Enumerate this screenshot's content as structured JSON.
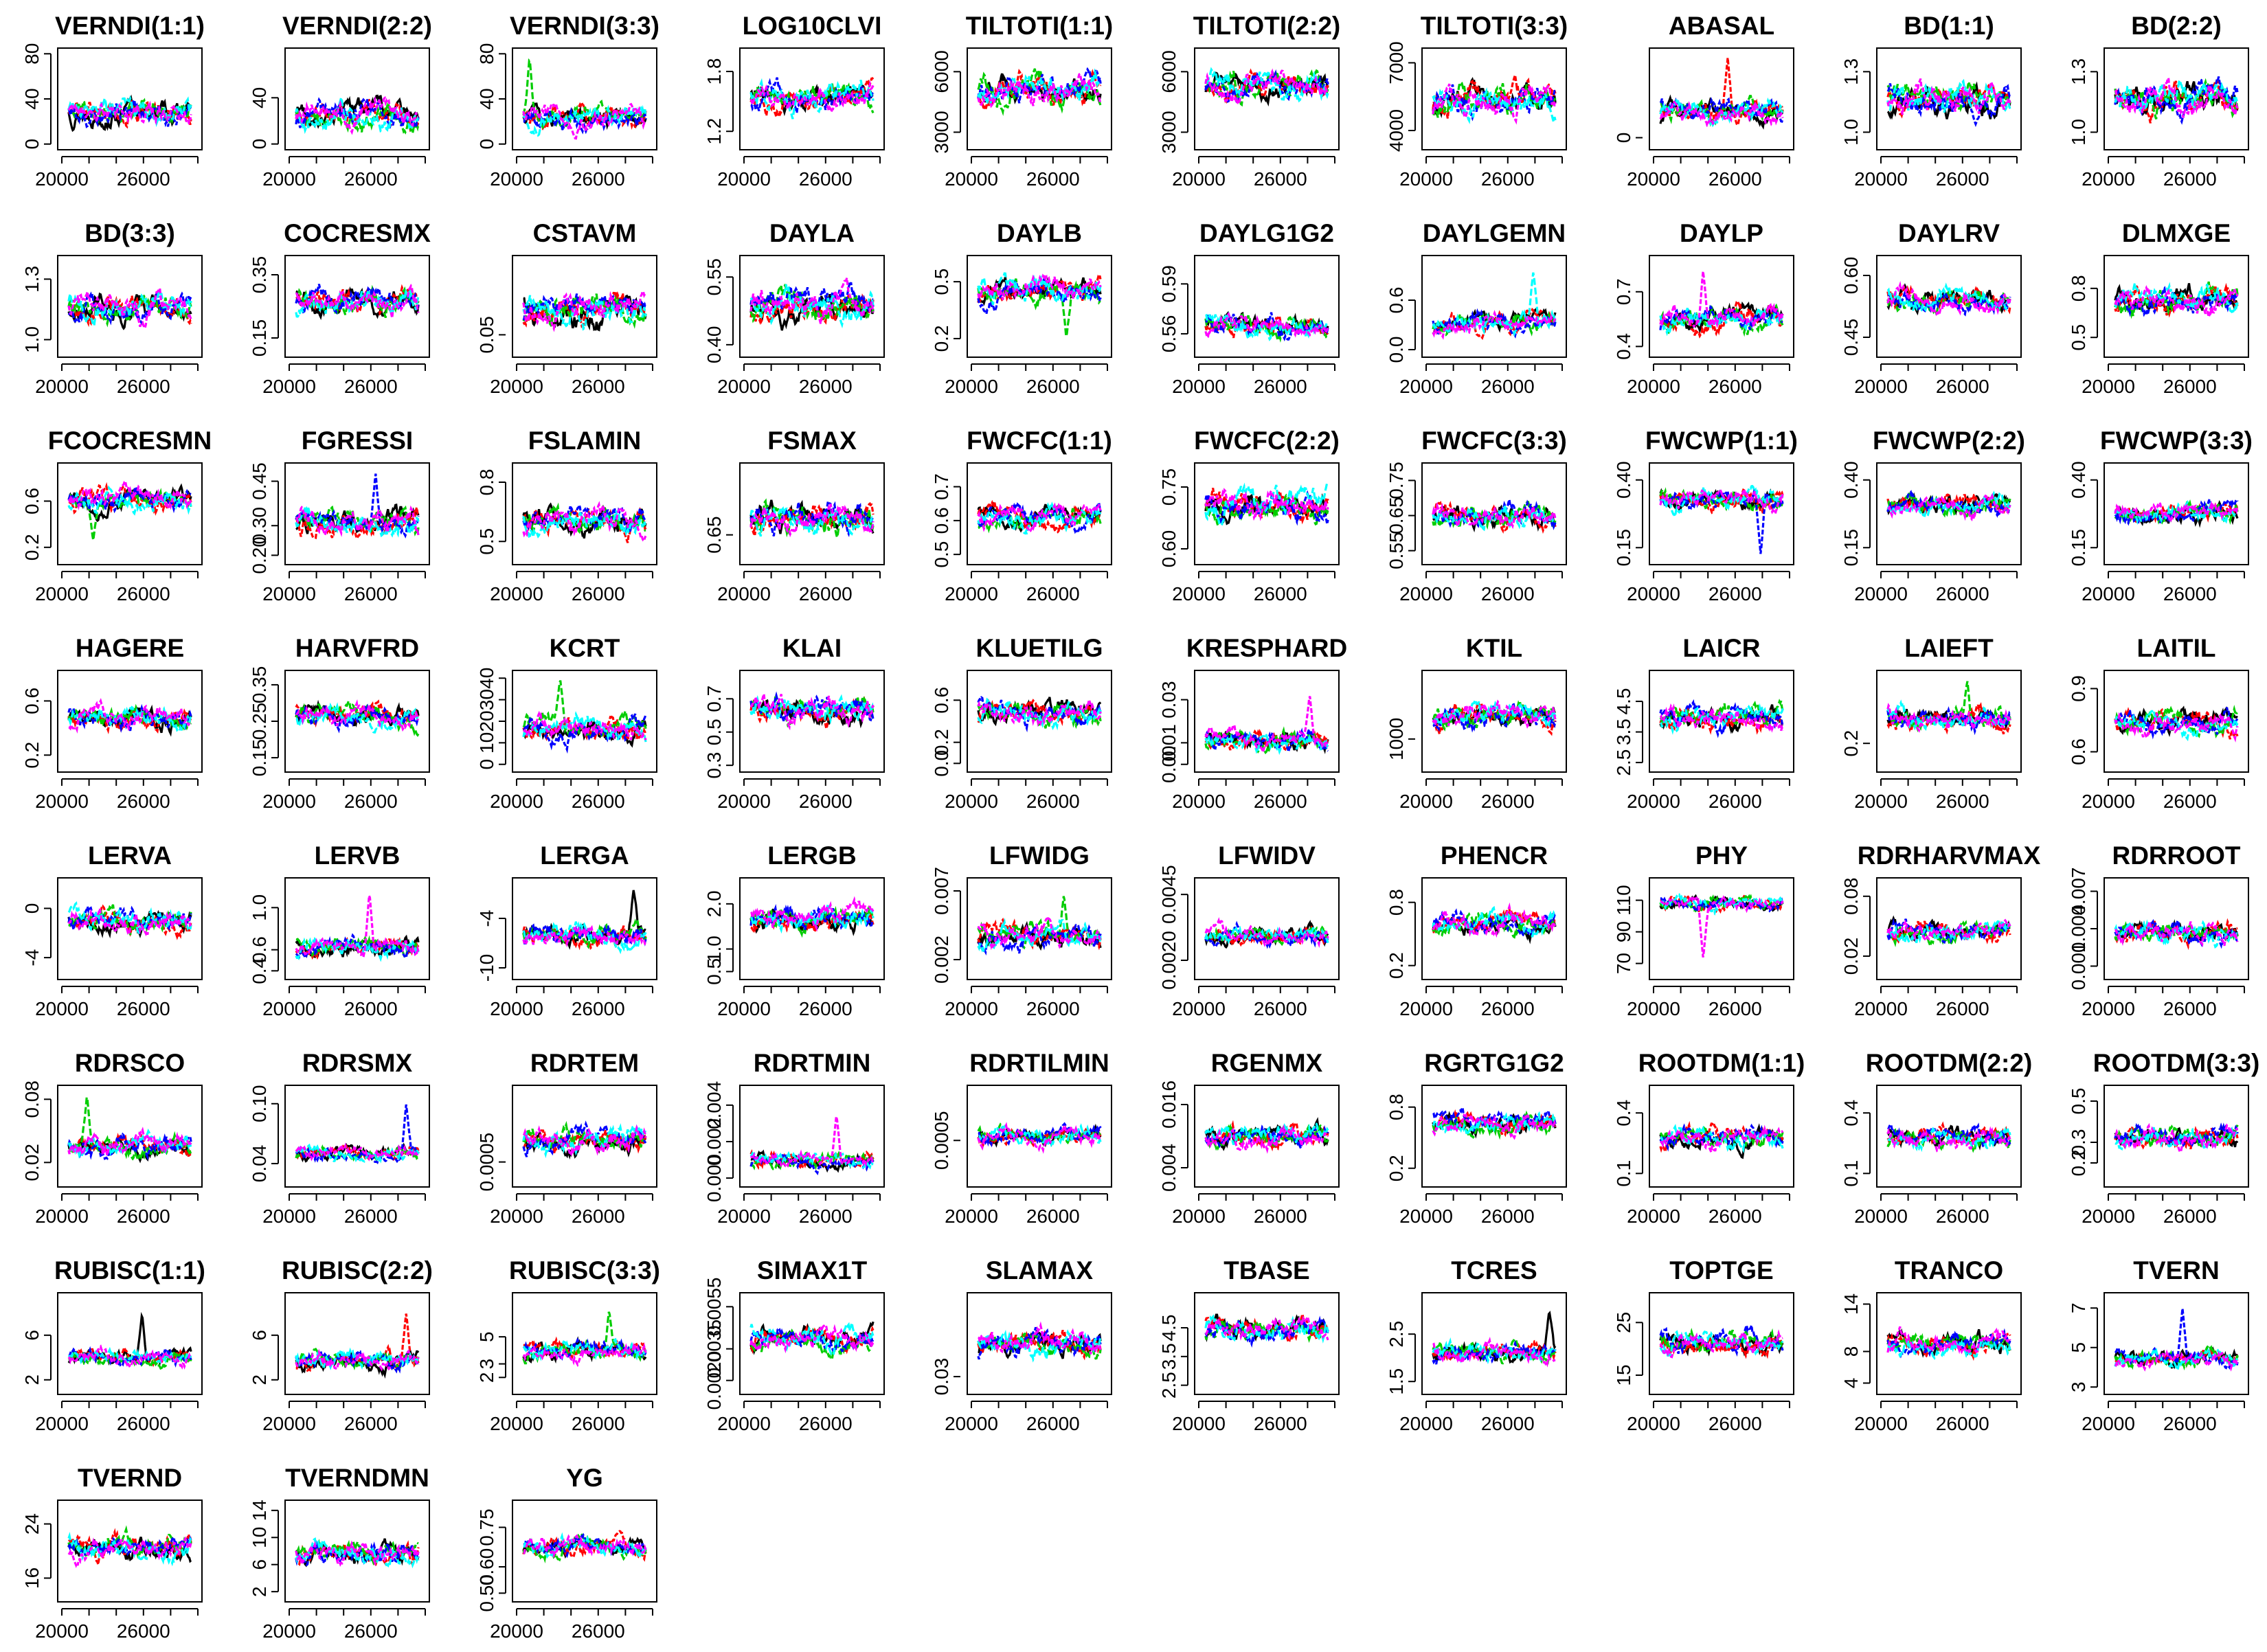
{
  "figure": {
    "ncols": 10,
    "nrows": 8,
    "chain_colors": [
      "#000000",
      "#ff0000",
      "#00cd00",
      "#0000ff",
      "#00ffff",
      "#ff00ff"
    ],
    "x_range": [
      20000,
      30000
    ],
    "x_ticks": [
      20000,
      26000
    ]
  },
  "chart_data": [
    {
      "type": "line",
      "title": "VERNDI(1:1)",
      "yticks": [
        0,
        40,
        80
      ],
      "ylim": [
        -2,
        82
      ],
      "band": [
        12,
        45
      ],
      "spike": [],
      "dip": []
    },
    {
      "type": "line",
      "title": "VERNDI(2:2)",
      "yticks": [
        0,
        40
      ],
      "ylim": [
        -2,
        80
      ],
      "band": [
        8,
        42
      ],
      "spike": [],
      "dip": []
    },
    {
      "type": "line",
      "title": "VERNDI(3:3)",
      "yticks": [
        0,
        40,
        80
      ],
      "ylim": [
        -2,
        82
      ],
      "band": [
        8,
        38
      ],
      "spike": [
        0.05,
        78
      ],
      "dip": []
    },
    {
      "type": "line",
      "title": "LOG10CLVI",
      "yticks": [
        1.2,
        1.8
      ],
      "ylim": [
        1.05,
        2.0
      ],
      "band": [
        1.35,
        1.75
      ],
      "spike": [],
      "dip": []
    },
    {
      "type": "line",
      "title": "TILTOTI(1:1)",
      "yticks": [
        3000,
        6000
      ],
      "ylim": [
        2300,
        7000
      ],
      "band": [
        4000,
        6200
      ],
      "spike": [],
      "dip": []
    },
    {
      "type": "line",
      "title": "TILTOTI(2:2)",
      "yticks": [
        3000,
        6000
      ],
      "ylim": [
        2300,
        7000
      ],
      "band": [
        4300,
        6300
      ],
      "spike": [],
      "dip": []
    },
    {
      "type": "line",
      "title": "TILTOTI(3:3)",
      "yticks": [
        4000,
        7000
      ],
      "ylim": [
        3300,
        7500
      ],
      "band": [
        4400,
        6400
      ],
      "spike": [],
      "dip": []
    },
    {
      "type": "line",
      "title": "ABASAL",
      "yticks": [
        0.0
      ],
      "ylim": [
        -0.0003,
        0.003
      ],
      "band": [
        0.0003,
        0.0015
      ],
      "spike": [
        0.55,
        0.0028
      ],
      "dip": []
    },
    {
      "type": "line",
      "title": "BD(1:1)",
      "yticks": [
        1.0,
        1.3
      ],
      "ylim": [
        0.93,
        1.4
      ],
      "band": [
        1.05,
        1.28
      ],
      "spike": [],
      "dip": []
    },
    {
      "type": "line",
      "title": "BD(2:2)",
      "yticks": [
        1.0,
        1.3
      ],
      "ylim": [
        0.93,
        1.4
      ],
      "band": [
        1.05,
        1.28
      ],
      "spike": [],
      "dip": []
    },
    {
      "type": "line",
      "title": "BD(3:3)",
      "yticks": [
        1.0,
        1.3
      ],
      "ylim": [
        0.93,
        1.4
      ],
      "band": [
        1.05,
        1.25
      ],
      "spike": [],
      "dip": []
    },
    {
      "type": "line",
      "title": "COCRESMX",
      "yticks": [
        0.15,
        0.35
      ],
      "ylim": [
        0.1,
        0.4
      ],
      "band": [
        0.2,
        0.33
      ],
      "spike": [],
      "dip": []
    },
    {
      "type": "line",
      "title": "CSTAVM",
      "yticks": [
        0.05
      ],
      "ylim": [
        0.0,
        0.25
      ],
      "band": [
        0.05,
        0.18
      ],
      "spike": [],
      "dip": []
    },
    {
      "type": "line",
      "title": "DAYLA",
      "yticks": [
        0.4,
        0.55
      ],
      "ylim": [
        0.38,
        0.59
      ],
      "band": [
        0.43,
        0.54
      ],
      "spike": [],
      "dip": []
    },
    {
      "type": "line",
      "title": "DAYLB",
      "yticks": [
        0.2,
        0.5
      ],
      "ylim": [
        0.12,
        0.62
      ],
      "band": [
        0.35,
        0.55
      ],
      "spike": [],
      "dip": [
        0.72,
        0.2
      ]
    },
    {
      "type": "line",
      "title": "DAYLG1G2",
      "yticks": [
        0.56,
        0.59
      ],
      "ylim": [
        0.548,
        0.605
      ],
      "band": [
        0.555,
        0.575
      ],
      "spike": [],
      "dip": []
    },
    {
      "type": "line",
      "title": "DAYLGEMN",
      "yticks": [
        0.0,
        0.6
      ],
      "ylim": [
        -0.05,
        1.1
      ],
      "band": [
        0.15,
        0.5
      ],
      "spike": [
        0.82,
        0.95
      ],
      "dip": []
    },
    {
      "type": "line",
      "title": "DAYLP",
      "yticks": [
        0.4,
        0.7
      ],
      "ylim": [
        0.36,
        0.88
      ],
      "band": [
        0.45,
        0.65
      ],
      "spike": [
        0.35,
        0.82
      ],
      "dip": []
    },
    {
      "type": "line",
      "title": "DAYLRV",
      "yticks": [
        0.45,
        0.6
      ],
      "ylim": [
        0.41,
        0.64
      ],
      "band": [
        0.5,
        0.58
      ],
      "spike": [],
      "dip": []
    },
    {
      "type": "line",
      "title": "DLMXGE",
      "yticks": [
        0.5,
        0.8
      ],
      "ylim": [
        0.4,
        0.98
      ],
      "band": [
        0.6,
        0.85
      ],
      "spike": [],
      "dip": []
    },
    {
      "type": "line",
      "title": "FCOCRESMN",
      "yticks": [
        0.2,
        0.6
      ],
      "ylim": [
        0.08,
        0.9
      ],
      "band": [
        0.45,
        0.75
      ],
      "spike": [],
      "dip": [
        0.2,
        0.25
      ]
    },
    {
      "type": "line",
      "title": "FGRESSI",
      "yticks": [
        0.2,
        0.3,
        0.45
      ],
      "ylim": [
        0.18,
        0.5
      ],
      "band": [
        0.25,
        0.38
      ],
      "spike": [
        0.65,
        0.48
      ],
      "dip": []
    },
    {
      "type": "line",
      "title": "FSLAMIN",
      "yticks": [
        0.5,
        0.8
      ],
      "ylim": [
        0.4,
        0.88
      ],
      "band": [
        0.5,
        0.7
      ],
      "spike": [],
      "dip": []
    },
    {
      "type": "line",
      "title": "FSMAX",
      "yticks": [
        0.65
      ],
      "ylim": [
        0.6,
        0.78
      ],
      "band": [
        0.64,
        0.73
      ],
      "spike": [],
      "dip": []
    },
    {
      "type": "line",
      "title": "FWCFC(1:1)",
      "yticks": [
        0.5,
        0.6,
        0.7
      ],
      "ylim": [
        0.48,
        0.76
      ],
      "band": [
        0.56,
        0.66
      ],
      "spike": [],
      "dip": []
    },
    {
      "type": "line",
      "title": "FWCFC(2:2)",
      "yticks": [
        0.6,
        0.75
      ],
      "ylim": [
        0.57,
        0.8
      ],
      "band": [
        0.65,
        0.76
      ],
      "spike": [],
      "dip": []
    },
    {
      "type": "line",
      "title": "FWCFC(3:3)",
      "yticks": [
        0.55,
        0.65,
        0.75
      ],
      "ylim": [
        0.52,
        0.79
      ],
      "band": [
        0.6,
        0.7
      ],
      "spike": [],
      "dip": []
    },
    {
      "type": "line",
      "title": "FWCWP(1:1)",
      "yticks": [
        0.15,
        0.4
      ],
      "ylim": [
        0.1,
        0.45
      ],
      "band": [
        0.27,
        0.38
      ],
      "spike": [],
      "dip": [
        0.82,
        0.12
      ]
    },
    {
      "type": "line",
      "title": "FWCWP(2:2)",
      "yticks": [
        0.15,
        0.4
      ],
      "ylim": [
        0.1,
        0.45
      ],
      "band": [
        0.25,
        0.36
      ],
      "spike": [],
      "dip": []
    },
    {
      "type": "line",
      "title": "FWCWP(3:3)",
      "yticks": [
        0.15,
        0.4
      ],
      "ylim": [
        0.1,
        0.45
      ],
      "band": [
        0.22,
        0.33
      ],
      "spike": [],
      "dip": []
    },
    {
      "type": "line",
      "title": "HAGERE",
      "yticks": [
        0.2,
        0.6
      ],
      "ylim": [
        0.1,
        0.8
      ],
      "band": [
        0.35,
        0.6
      ],
      "spike": [],
      "dip": []
    },
    {
      "type": "line",
      "title": "HARVFRD",
      "yticks": [
        0.15,
        0.25,
        0.35
      ],
      "ylim": [
        0.12,
        0.38
      ],
      "band": [
        0.22,
        0.31
      ],
      "spike": [],
      "dip": []
    },
    {
      "type": "line",
      "title": "KCRT",
      "yticks": [
        0,
        10,
        20,
        30,
        40
      ],
      "ylim": [
        -2,
        42
      ],
      "band": [
        8,
        25
      ],
      "spike": [
        0.3,
        40
      ],
      "dip": []
    },
    {
      "type": "line",
      "title": "KLAI",
      "yticks": [
        0.3,
        0.5,
        0.7
      ],
      "ylim": [
        0.28,
        0.85
      ],
      "band": [
        0.5,
        0.75
      ],
      "spike": [],
      "dip": []
    },
    {
      "type": "line",
      "title": "KLUETILG",
      "yticks": [
        0.0,
        0.2,
        0.6
      ],
      "ylim": [
        -0.05,
        0.85
      ],
      "band": [
        0.3,
        0.65
      ],
      "spike": [],
      "dip": []
    },
    {
      "type": "line",
      "title": "KRESPHARD",
      "yticks": [
        0.0,
        0.01,
        0.03
      ],
      "ylim": [
        -0.002,
        0.042
      ],
      "band": [
        0.004,
        0.018
      ],
      "spike": [
        0.85,
        0.033
      ],
      "dip": []
    },
    {
      "type": "line",
      "title": "KTIL",
      "yticks": [
        1000
      ],
      "ylim": [
        500,
        2100
      ],
      "band": [
        1100,
        1700
      ],
      "spike": [],
      "dip": []
    },
    {
      "type": "line",
      "title": "LAICR",
      "yticks": [
        2.5,
        3.5,
        4.5
      ],
      "ylim": [
        2.3,
        5.4
      ],
      "band": [
        3.3,
        4.5
      ],
      "spike": [],
      "dip": []
    },
    {
      "type": "line",
      "title": "LAIEFT",
      "yticks": [
        0.2
      ],
      "ylim": [
        0.12,
        0.42
      ],
      "band": [
        0.22,
        0.33
      ],
      "spike": [
        0.65,
        0.4
      ],
      "dip": []
    },
    {
      "type": "line",
      "title": "LAITIL",
      "yticks": [
        0.6,
        0.9
      ],
      "ylim": [
        0.52,
        0.97
      ],
      "band": [
        0.65,
        0.82
      ],
      "spike": [],
      "dip": []
    },
    {
      "type": "line",
      "title": "LERVA",
      "yticks": [
        -4,
        0
      ],
      "ylim": [
        -5.5,
        2.2
      ],
      "band": [
        -2.5,
        0.2
      ],
      "spike": [],
      "dip": []
    },
    {
      "type": "line",
      "title": "LERVB",
      "yticks": [
        0.4,
        0.6,
        1.0
      ],
      "ylim": [
        0.35,
        1.25
      ],
      "band": [
        0.5,
        0.75
      ],
      "spike": [
        0.6,
        1.15
      ],
      "dip": []
    },
    {
      "type": "line",
      "title": "LERGA",
      "yticks": [
        -10,
        -4
      ],
      "ylim": [
        -11,
        0.5
      ],
      "band": [
        -8,
        -4
      ],
      "spike": [
        0.9,
        -0.5
      ],
      "dip": []
    },
    {
      "type": "line",
      "title": "LERGB",
      "yticks": [
        0.5,
        1.0,
        2.0
      ],
      "ylim": [
        0.4,
        2.5
      ],
      "band": [
        1.3,
        2.1
      ],
      "spike": [],
      "dip": []
    },
    {
      "type": "line",
      "title": "LFWIDG",
      "yticks": [
        0.002,
        0.007
      ],
      "ylim": [
        0.0008,
        0.0077
      ],
      "band": [
        0.0025,
        0.005
      ],
      "spike": [
        0.7,
        0.0068
      ],
      "dip": []
    },
    {
      "type": "line",
      "title": "LFWIDV",
      "yticks": [
        0.002,
        0.0045
      ],
      "ylim": [
        0.0014,
        0.005
      ],
      "band": [
        0.0024,
        0.0034
      ],
      "spike": [],
      "dip": []
    },
    {
      "type": "line",
      "title": "PHENCR",
      "yticks": [
        0.2,
        0.8
      ],
      "ylim": [
        0.1,
        1.0
      ],
      "band": [
        0.45,
        0.75
      ],
      "spike": [],
      "dip": []
    },
    {
      "type": "line",
      "title": "PHY",
      "yticks": [
        70,
        90,
        110
      ],
      "ylim": [
        62,
        122
      ],
      "band": [
        102,
        114
      ],
      "spike": [],
      "dip": [
        0.35,
        73
      ]
    },
    {
      "type": "line",
      "title": "RDRHARVMAX",
      "yticks": [
        0.02,
        0.08
      ],
      "ylim": [
        0.0,
        0.095
      ],
      "band": [
        0.03,
        0.06
      ],
      "spike": [],
      "dip": []
    },
    {
      "type": "line",
      "title": "RDRROOT",
      "yticks": [
        0.001,
        0.004,
        0.007
      ],
      "ylim": [
        0.0002,
        0.0078
      ],
      "band": [
        0.0025,
        0.005
      ],
      "spike": [],
      "dip": []
    },
    {
      "type": "line",
      "title": "RDRSCO",
      "yticks": [
        0.02,
        0.08
      ],
      "ylim": [
        0.0,
        0.09
      ],
      "band": [
        0.02,
        0.05
      ],
      "spike": [
        0.15,
        0.085
      ],
      "dip": []
    },
    {
      "type": "line",
      "title": "RDRSMX",
      "yticks": [
        0.04,
        0.1
      ],
      "ylim": [
        0.02,
        0.115
      ],
      "band": [
        0.04,
        0.06
      ],
      "spike": [
        0.9,
        0.1
      ],
      "dip": []
    },
    {
      "type": "line",
      "title": "RDRTEM",
      "yticks": [
        0.0005
      ],
      "ylim": [
        0.0,
        0.0022
      ],
      "band": [
        0.0006,
        0.0014
      ],
      "spike": [],
      "dip": []
    },
    {
      "type": "line",
      "title": "RDRTMIN",
      "yticks": [
        0.0,
        0.002,
        0.004
      ],
      "ylim": [
        -0.0003,
        0.0049
      ],
      "band": [
        0.0004,
        0.0016
      ],
      "spike": [
        0.7,
        0.0035
      ],
      "dip": []
    },
    {
      "type": "line",
      "title": "RDRTILMIN",
      "yticks": [
        0.0005
      ],
      "ylim": [
        0.0,
        0.0011
      ],
      "band": [
        0.0004,
        0.0007
      ],
      "spike": [],
      "dip": []
    },
    {
      "type": "line",
      "title": "RGENMX",
      "yticks": [
        0.004,
        0.016
      ],
      "ylim": [
        0.001,
        0.019
      ],
      "band": [
        0.007,
        0.013
      ],
      "spike": [],
      "dip": []
    },
    {
      "type": "line",
      "title": "RGRTG1G2",
      "yticks": [
        0.2,
        0.8
      ],
      "ylim": [
        0.05,
        0.98
      ],
      "band": [
        0.5,
        0.8
      ],
      "spike": [],
      "dip": []
    },
    {
      "type": "line",
      "title": "ROOTDM(1:1)",
      "yticks": [
        0.1,
        0.4
      ],
      "ylim": [
        0.05,
        0.52
      ],
      "band": [
        0.2,
        0.35
      ],
      "spike": [],
      "dip": []
    },
    {
      "type": "line",
      "title": "ROOTDM(2:2)",
      "yticks": [
        0.1,
        0.4
      ],
      "ylim": [
        0.05,
        0.52
      ],
      "band": [
        0.2,
        0.35
      ],
      "spike": [],
      "dip": []
    },
    {
      "type": "line",
      "title": "ROOTDM(3:3)",
      "yticks": [
        0.2,
        0.3,
        0.5
      ],
      "ylim": [
        0.1,
        0.56
      ],
      "band": [
        0.25,
        0.4
      ],
      "spike": [],
      "dip": []
    },
    {
      "type": "line",
      "title": "RUBISC(1:1)",
      "yticks": [
        2,
        6
      ],
      "ylim": [
        1,
        9.5
      ],
      "band": [
        3,
        5
      ],
      "spike": [
        0.6,
        8
      ],
      "dip": []
    },
    {
      "type": "line",
      "title": "RUBISC(2:2)",
      "yticks": [
        2,
        6
      ],
      "ylim": [
        1,
        9.5
      ],
      "band": [
        2.5,
        5
      ],
      "spike": [
        0.9,
        8
      ],
      "dip": []
    },
    {
      "type": "line",
      "title": "RUBISC(3:3)",
      "yticks": [
        2,
        3,
        5
      ],
      "ylim": [
        1,
        8
      ],
      "band": [
        3,
        5
      ],
      "spike": [
        0.7,
        7
      ],
      "dip": []
    },
    {
      "type": "line",
      "title": "SIMAX1T",
      "yticks": [
        0.002,
        0.0035,
        0.0055
      ],
      "ylim": [
        0.0015,
        0.006
      ],
      "band": [
        0.0032,
        0.0048
      ],
      "spike": [],
      "dip": []
    },
    {
      "type": "line",
      "title": "SLAMAX",
      "yticks": [
        0.03
      ],
      "ylim": [
        0.025,
        0.058
      ],
      "band": [
        0.035,
        0.048
      ],
      "spike": [],
      "dip": []
    },
    {
      "type": "line",
      "title": "TBASE",
      "yticks": [
        2.5,
        3.5,
        4.5
      ],
      "ylim": [
        2.3,
        5.6
      ],
      "band": [
        3.8,
        5.0
      ],
      "spike": [],
      "dip": []
    },
    {
      "type": "line",
      "title": "TCRES",
      "yticks": [
        1.5,
        2.5
      ],
      "ylim": [
        1.3,
        3.3
      ],
      "band": [
        1.8,
        2.4
      ],
      "spike": [
        0.95,
        3.0
      ],
      "dip": []
    },
    {
      "type": "line",
      "title": "TOPTGE",
      "yticks": [
        15,
        25
      ],
      "ylim": [
        12,
        30
      ],
      "band": [
        18,
        24
      ],
      "spike": [],
      "dip": []
    },
    {
      "type": "line",
      "title": "TRANCO",
      "yticks": [
        4,
        8,
        14
      ],
      "ylim": [
        3,
        15
      ],
      "band": [
        7,
        11
      ],
      "spike": [],
      "dip": []
    },
    {
      "type": "line",
      "title": "TVERN",
      "yticks": [
        3,
        5,
        7
      ],
      "ylim": [
        2.8,
        7.6
      ],
      "band": [
        3.8,
        5.0
      ],
      "spike": [
        0.55,
        7
      ],
      "dip": []
    },
    {
      "type": "line",
      "title": "TVERND",
      "yticks": [
        16,
        24
      ],
      "ylim": [
        13,
        27
      ],
      "band": [
        18,
        23
      ],
      "spike": [],
      "dip": []
    },
    {
      "type": "line",
      "title": "TVERNDMN",
      "yticks": [
        2,
        6,
        10,
        14
      ],
      "ylim": [
        1,
        15
      ],
      "band": [
        5,
        10
      ],
      "spike": [],
      "dip": []
    },
    {
      "type": "line",
      "title": "YG",
      "yticks": [
        0.5,
        0.6,
        0.75
      ],
      "ylim": [
        0.48,
        0.84
      ],
      "band": [
        0.62,
        0.72
      ],
      "spike": [],
      "dip": []
    }
  ]
}
